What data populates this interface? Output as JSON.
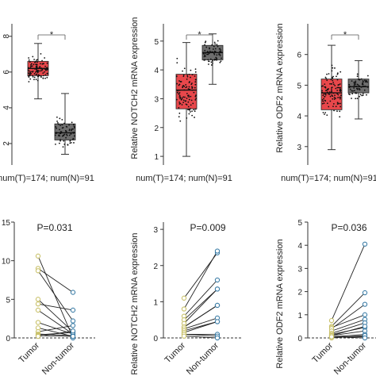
{
  "chart_data": [
    {
      "type": "box",
      "panel": "top-left",
      "xlabel": "num(T)=174; num(N)=91",
      "ylabel": "",
      "yticks": [
        2,
        4,
        6,
        8
      ],
      "ylim": [
        0.8,
        8.7
      ],
      "significance": "*",
      "series": [
        {
          "group": "T",
          "color": "#e8474b",
          "median": 6.2,
          "q1": 5.8,
          "q3": 6.6,
          "whisker_low": 4.5,
          "whisker_high": 7.6
        },
        {
          "group": "N",
          "color": "#6e6e6e",
          "median": 2.6,
          "q1": 2.2,
          "q3": 3.1,
          "whisker_low": 1.4,
          "whisker_high": 4.8
        }
      ]
    },
    {
      "type": "box",
      "panel": "top-middle",
      "xlabel": "num(T)=174; num(N)=91",
      "ylabel": "Relative NOTCH2 mRNA expression",
      "yticks": [
        1,
        2,
        3,
        4,
        5
      ],
      "ylim": [
        0.7,
        5.6
      ],
      "significance": "*",
      "series": [
        {
          "group": "T",
          "color": "#e8474b",
          "median": 3.3,
          "q1": 2.65,
          "q3": 3.85,
          "whisker_low": 1.0,
          "whisker_high": 4.95
        },
        {
          "group": "N",
          "color": "#6e6e6e",
          "median": 4.6,
          "q1": 4.35,
          "q3": 4.85,
          "whisker_low": 3.5,
          "whisker_high": 5.25
        }
      ]
    },
    {
      "type": "box",
      "panel": "top-right",
      "xlabel": "num(T)=174; num(N)=91",
      "ylabel": "Relative ODF2 mRNA expression",
      "yticks": [
        3,
        4,
        5,
        6
      ],
      "ylim": [
        2.4,
        7.0
      ],
      "significance": "*",
      "series": [
        {
          "group": "T",
          "color": "#e8474b",
          "median": 4.75,
          "q1": 4.2,
          "q3": 5.2,
          "whisker_low": 2.9,
          "whisker_high": 6.3
        },
        {
          "group": "N",
          "color": "#6e6e6e",
          "median": 4.95,
          "q1": 4.75,
          "q3": 5.2,
          "whisker_low": 3.9,
          "whisker_high": 5.8
        }
      ]
    },
    {
      "type": "paired-line",
      "panel": "bottom-left",
      "p_value": "P=0.031",
      "categories": [
        "Tumor",
        "Non-tumor"
      ],
      "ylabel": "",
      "yticks": [
        0,
        5,
        10,
        15
      ],
      "ylim": [
        0,
        15
      ],
      "pairs": [
        [
          10.6,
          0
        ],
        [
          9.0,
          5.9
        ],
        [
          8.7,
          2.2
        ],
        [
          5.0,
          0.8
        ],
        [
          4.4,
          3.6
        ],
        [
          3.6,
          0.5
        ],
        [
          2.0,
          0.5
        ],
        [
          1.3,
          0.2
        ],
        [
          0.8,
          1.6
        ],
        [
          0.5,
          0.3
        ],
        [
          0.4,
          0.7
        ],
        [
          0.3,
          0.2
        ],
        [
          0.2,
          0.9
        ]
      ]
    },
    {
      "type": "paired-line",
      "panel": "bottom-middle",
      "p_value": "P=0.009",
      "categories": [
        "Tumor",
        "Non-tumor"
      ],
      "ylabel": "Relative NOTCH2 mRNA expression",
      "yticks": [
        0,
        1,
        2,
        3
      ],
      "ylim": [
        0,
        3.2
      ],
      "pairs": [
        [
          1.1,
          2.35
        ],
        [
          0.8,
          2.4
        ],
        [
          0.6,
          1.6
        ],
        [
          0.5,
          1.35
        ],
        [
          0.4,
          1.35
        ],
        [
          0.3,
          0.9
        ],
        [
          0.3,
          0.9
        ],
        [
          0.25,
          0.55
        ],
        [
          0.2,
          0.45
        ],
        [
          0.15,
          0.45
        ],
        [
          0.1,
          0.1
        ],
        [
          0.1,
          0.05
        ],
        [
          0.05,
          0.0
        ]
      ]
    },
    {
      "type": "paired-line",
      "panel": "bottom-right",
      "p_value": "P=0.036",
      "categories": [
        "Tumor",
        "Non-tumor"
      ],
      "ylabel": "Relative ODF2 mRNA expression",
      "yticks": [
        0,
        1,
        2,
        3,
        4,
        5
      ],
      "ylim": [
        0,
        5
      ],
      "pairs": [
        [
          0.75,
          4.05
        ],
        [
          0.5,
          1.95
        ],
        [
          0.45,
          1.0
        ],
        [
          0.4,
          1.45
        ],
        [
          0.3,
          0.8
        ],
        [
          0.2,
          0.65
        ],
        [
          0.15,
          0.45
        ],
        [
          0.1,
          0.5
        ],
        [
          0.1,
          0.3
        ],
        [
          0.05,
          0.15
        ],
        [
          0.05,
          0.05
        ],
        [
          0.0,
          0.1
        ],
        [
          0.05,
          0.0
        ]
      ]
    }
  ],
  "colors": {
    "tumor_box": "#e8474b",
    "normal_box": "#6e6e6e",
    "tumor_point": "#c9c16a",
    "normal_point": "#3f7fa8",
    "line": "#222222",
    "significance": "#e8474b"
  }
}
